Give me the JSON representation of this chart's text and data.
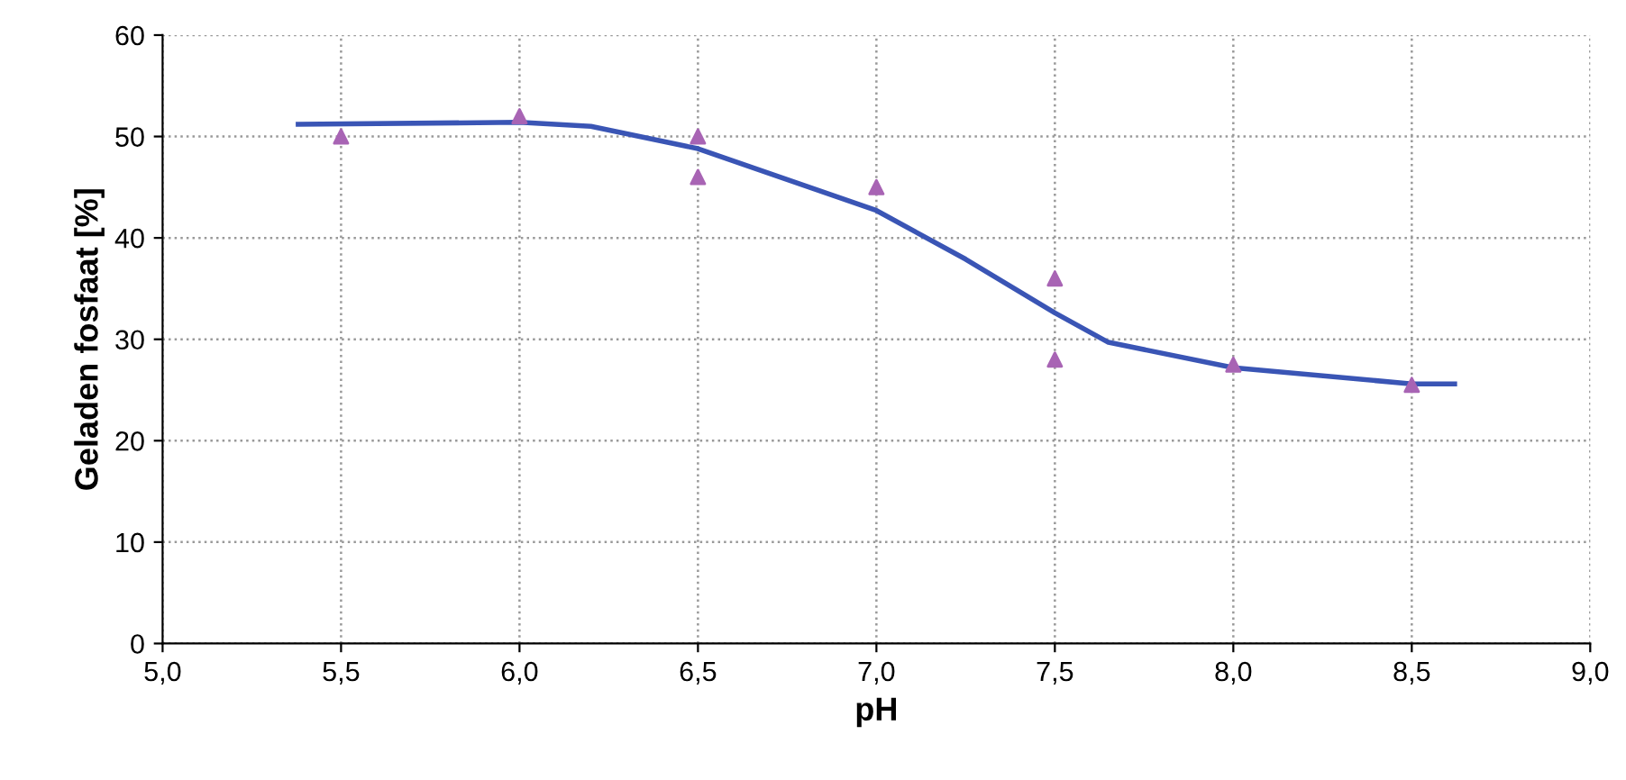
{
  "chart_data": {
    "type": "scatter",
    "xlabel": "pH",
    "ylabel": "Geladen fosfaat [%]",
    "series": [
      {
        "color": "#a864b4",
        "marker": "triangle",
        "x": [
          5.5,
          6.0,
          6.5,
          6.5,
          7.0,
          7.5,
          7.5,
          8.0,
          8.5
        ],
        "values": [
          50,
          52,
          50,
          46,
          45,
          36,
          28,
          27.5,
          25.5
        ]
      },
      {
        "type": "line",
        "color": "#3a55b5",
        "marker": "none",
        "x": [
          5.38,
          6.0,
          6.2,
          6.5,
          7.0,
          7.25,
          7.5,
          7.65,
          8.0,
          8.5,
          8.62
        ],
        "values": [
          51.2,
          51.4,
          51,
          48.8,
          42.7,
          37.9,
          32.6,
          29.7,
          27.2,
          25.6,
          25.6
        ]
      }
    ],
    "xlim": [
      5.0,
      9.0
    ],
    "xticks": [
      {
        "value": 5.0,
        "label": "5,0"
      },
      {
        "value": 5.5,
        "label": "5,5"
      },
      {
        "value": 6.0,
        "label": "6,0"
      },
      {
        "value": 6.5,
        "label": "6,5"
      },
      {
        "value": 7.0,
        "label": "7,0"
      },
      {
        "value": 7.5,
        "label": "7,5"
      },
      {
        "value": 8.0,
        "label": "8,0"
      },
      {
        "value": 8.5,
        "label": "8,5"
      },
      {
        "value": 9.0,
        "label": "9,0"
      }
    ],
    "ylim": [
      0,
      60
    ],
    "yticks": [
      0,
      10,
      20,
      30,
      40,
      50,
      60
    ],
    "grid": true
  }
}
